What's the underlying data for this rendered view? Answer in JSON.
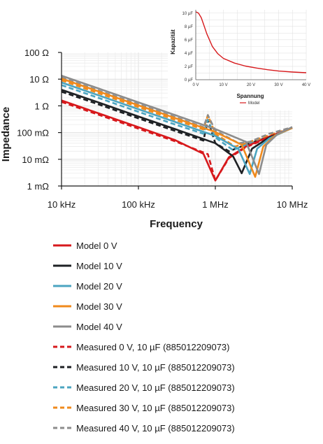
{
  "chart_data": [
    {
      "type": "line",
      "xlabel": "Frequency",
      "ylabel": "Impedance",
      "x_scale": "log",
      "y_scale": "log",
      "xlim": [
        10000,
        10000000
      ],
      "ylim": [
        0.001,
        100
      ],
      "x_ticks": [
        10000,
        100000,
        1000000,
        10000000
      ],
      "x_tick_labels": [
        "10 kHz",
        "100 kHz",
        "1 MHz",
        "10 MHz"
      ],
      "y_ticks": [
        100,
        10,
        1,
        0.1,
        0.01,
        0.001
      ],
      "y_tick_labels": [
        "100 Ω",
        "10 Ω",
        "1 Ω",
        "100 mΩ",
        "10 mΩ",
        "1 mΩ"
      ],
      "grid": true,
      "legend_position": "bottom",
      "series": [
        {
          "name": "Model 0 V",
          "color": "#d7191c",
          "dash": false,
          "x": [
            10000,
            30000,
            100000,
            300000,
            700000,
            1000000,
            1500000,
            2500000,
            5000000,
            10000000
          ],
          "y": [
            1.6,
            0.53,
            0.16,
            0.052,
            0.016,
            0.0016,
            0.012,
            0.03,
            0.07,
            0.15
          ]
        },
        {
          "name": "Model 10 V",
          "color": "#1e2124",
          "dash": false,
          "x": [
            10000,
            30000,
            100000,
            300000,
            1000000,
            1700000,
            2200000,
            3000000,
            5000000,
            10000000
          ],
          "y": [
            4.0,
            1.35,
            0.4,
            0.135,
            0.04,
            0.013,
            0.003,
            0.025,
            0.065,
            0.15
          ]
        },
        {
          "name": "Model 20 V",
          "color": "#4ba4c0",
          "dash": false,
          "x": [
            10000,
            30000,
            100000,
            300000,
            1000000,
            2000000,
            2800000,
            3500000,
            5000000,
            10000000
          ],
          "y": [
            7.5,
            2.5,
            0.75,
            0.25,
            0.075,
            0.024,
            0.0028,
            0.025,
            0.06,
            0.15
          ]
        },
        {
          "name": "Model 30 V",
          "color": "#f08a1c",
          "dash": false,
          "x": [
            10000,
            30000,
            100000,
            300000,
            1000000,
            2200000,
            3300000,
            4200000,
            6000000,
            10000000
          ],
          "y": [
            10.5,
            3.5,
            1.05,
            0.35,
            0.105,
            0.035,
            0.0022,
            0.03,
            0.08,
            0.15
          ]
        },
        {
          "name": "Model 40 V",
          "color": "#8c8c8c",
          "dash": false,
          "x": [
            10000,
            30000,
            100000,
            300000,
            1000000,
            2500000,
            3700000,
            4600000,
            6500000,
            10000000
          ],
          "y": [
            13.5,
            4.5,
            1.35,
            0.45,
            0.135,
            0.045,
            0.0028,
            0.035,
            0.09,
            0.16
          ]
        },
        {
          "name": "Measured 0 V, 10 µF (885012209073)",
          "color": "#d7191c",
          "dash": true,
          "x": [
            10000,
            30000,
            100000,
            300000,
            800000,
            1000000,
            1500000,
            2500000,
            5000000,
            10000000
          ],
          "y": [
            1.4,
            0.47,
            0.14,
            0.047,
            0.0155,
            0.0016,
            0.011,
            0.028,
            0.065,
            0.15
          ]
        },
        {
          "name": "Measured 10 V, 10 µF (885012209073)",
          "color": "#1e2124",
          "dash": true,
          "x": [
            10000,
            30000,
            100000,
            300000,
            700000,
            800000,
            1000000,
            1500000,
            2500000,
            5000000,
            10000000
          ],
          "y": [
            3.4,
            1.15,
            0.34,
            0.115,
            0.05,
            0.3,
            0.04,
            0.02,
            0.035,
            0.07,
            0.15
          ]
        },
        {
          "name": "Measured 20 V, 10 µF (885012209073)",
          "color": "#4ba4c0",
          "dash": true,
          "x": [
            10000,
            30000,
            100000,
            300000,
            700000,
            800000,
            1000000,
            1700000,
            2500000,
            5000000,
            10000000
          ],
          "y": [
            6.0,
            2.0,
            0.6,
            0.2,
            0.09,
            0.3,
            0.065,
            0.022,
            0.035,
            0.07,
            0.15
          ]
        },
        {
          "name": "Measured 30 V, 10 µF (885012209073)",
          "color": "#f08a1c",
          "dash": true,
          "x": [
            10000,
            30000,
            100000,
            300000,
            700000,
            800000,
            1000000,
            1800000,
            2500000,
            5000000,
            10000000
          ],
          "y": [
            9.0,
            3.0,
            0.9,
            0.3,
            0.13,
            0.45,
            0.09,
            0.03,
            0.04,
            0.08,
            0.15
          ]
        },
        {
          "name": "Measured 40 V, 10 µF (885012209073)",
          "color": "#8c8c8c",
          "dash": true,
          "x": [
            10000,
            30000,
            100000,
            300000,
            700000,
            800000,
            1000000,
            2000000,
            2800000,
            5000000,
            10000000
          ],
          "y": [
            11.5,
            3.8,
            1.15,
            0.38,
            0.16,
            0.45,
            0.12,
            0.04,
            0.045,
            0.09,
            0.16
          ]
        }
      ]
    },
    {
      "type": "line",
      "xlabel": "Spannung",
      "ylabel": "Kapazität",
      "xlim": [
        0,
        40
      ],
      "ylim": [
        0,
        10.5
      ],
      "x_ticks": [
        0,
        10,
        20,
        30,
        40
      ],
      "x_tick_labels": [
        "0 V",
        "10 V",
        "20 V",
        "30 V",
        "40 V"
      ],
      "y_ticks": [
        0,
        2,
        4,
        6,
        8,
        10
      ],
      "y_tick_labels": [
        "0 µF",
        "2 µF",
        "4 µF",
        "6 µF",
        "8 µF",
        "10 µF"
      ],
      "grid": true,
      "legend_position": "bottom",
      "series": [
        {
          "name": "Model",
          "color": "#d7191c",
          "x": [
            0,
            1,
            2,
            3,
            4,
            6,
            8,
            10,
            14,
            18,
            22,
            26,
            30,
            35,
            40
          ],
          "y": [
            10.2,
            10.0,
            9.3,
            8.1,
            6.9,
            5.0,
            3.9,
            3.2,
            2.5,
            2.05,
            1.75,
            1.5,
            1.3,
            1.15,
            1.05
          ]
        }
      ]
    }
  ]
}
